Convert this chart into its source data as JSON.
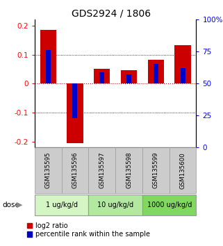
{
  "title": "GDS2924 / 1806",
  "samples": [
    "GSM135595",
    "GSM135596",
    "GSM135597",
    "GSM135598",
    "GSM135599",
    "GSM135600"
  ],
  "log2_ratio": [
    0.185,
    -0.205,
    0.052,
    0.047,
    0.082,
    0.133
  ],
  "percentile_rank": [
    0.115,
    -0.118,
    0.038,
    0.032,
    0.068,
    0.053
  ],
  "dose_groups": [
    {
      "label": "1 ug/kg/d",
      "start": 0,
      "end": 2,
      "color": "#d4f5c4"
    },
    {
      "label": "10 ug/kg/d",
      "start": 2,
      "end": 4,
      "color": "#b2e8a0"
    },
    {
      "label": "1000 ug/kg/d",
      "start": 4,
      "end": 6,
      "color": "#80d860"
    }
  ],
  "ylim": [
    -0.22,
    0.22
  ],
  "right_ylim": [
    0,
    100
  ],
  "right_yticks": [
    0,
    25,
    50,
    75,
    100
  ],
  "right_yticklabels": [
    "0",
    "25",
    "50",
    "75",
    "100%"
  ],
  "left_yticks": [
    -0.2,
    -0.1,
    0.0,
    0.1,
    0.2
  ],
  "left_yticklabels": [
    "-0.2",
    "-0.1",
    "0",
    "0.1",
    "0.2"
  ],
  "bar_color_red": "#cc0000",
  "bar_color_blue": "#0000cc",
  "bar_width": 0.6,
  "blue_bar_width": 0.18,
  "zero_line_color": "#cc0000",
  "label_log2": "log2 ratio",
  "label_percentile": "percentile rank within the sample",
  "header_bg": "#cccccc",
  "header_border": "#999999"
}
